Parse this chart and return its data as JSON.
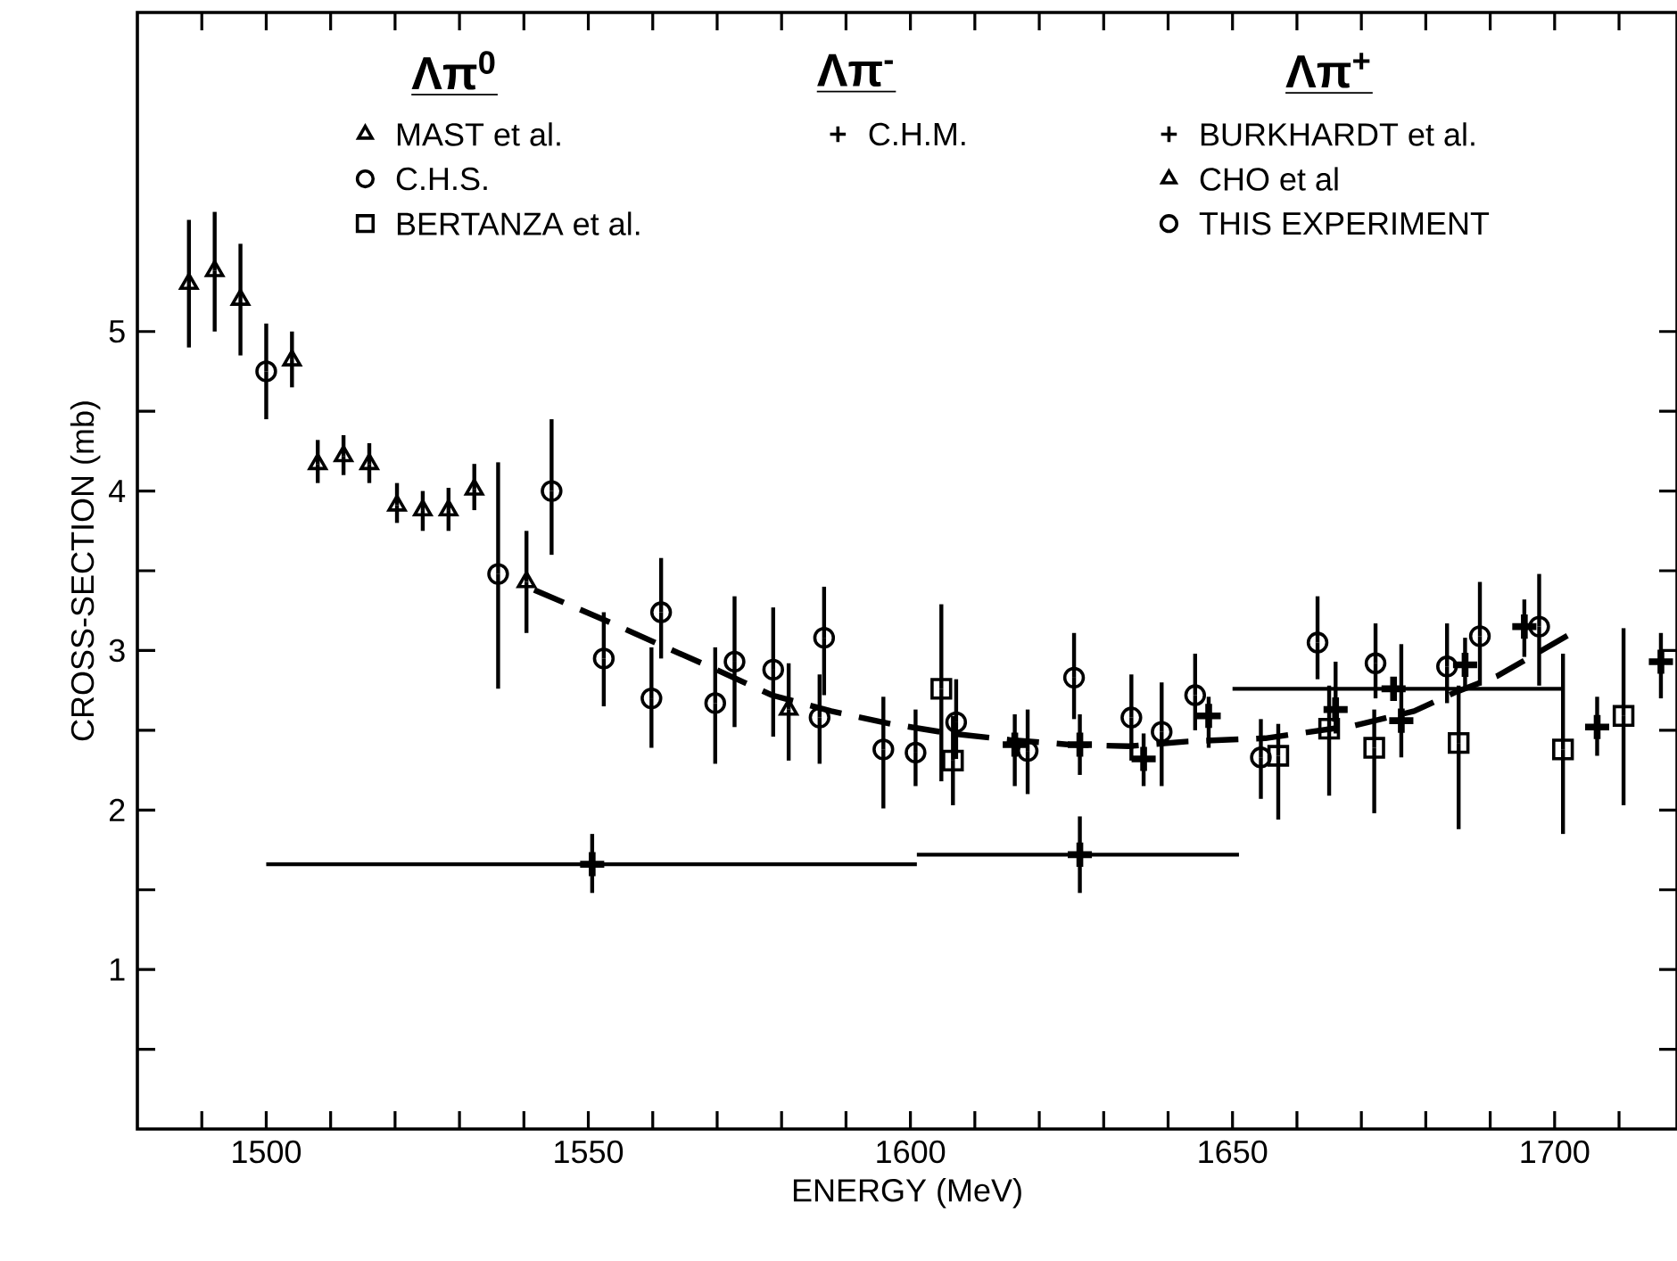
{
  "chart_data": {
    "type": "scatter",
    "xlabel": "ENERGY (MeV)",
    "ylabel": "CROSS-SECTION (mb)",
    "annotations": [
      "Λπ$^{0}$",
      "Λπ$^{-}$",
      "Λπ$^{+}$"
    ],
    "xlim": [
      1480,
      1719
    ],
    "ylim": [
      0,
      7
    ],
    "xticks": [
      {
        "value": 1490,
        "label": null
      },
      1500,
      {
        "value": 1510,
        "label": null
      },
      {
        "value": 1520,
        "label": null
      },
      {
        "value": 1530,
        "label": null
      },
      {
        "value": 1540,
        "label": null
      },
      1550,
      {
        "value": 1560,
        "label": null
      },
      {
        "value": 1570,
        "label": null
      },
      {
        "value": 1580,
        "label": null
      },
      {
        "value": 1590,
        "label": null
      },
      1600,
      {
        "value": 1610,
        "label": null
      },
      {
        "value": 1620,
        "label": null
      },
      {
        "value": 1630,
        "label": null
      },
      {
        "value": 1640,
        "label": null
      },
      1650,
      {
        "value": 1660,
        "label": null
      },
      {
        "value": 1670,
        "label": null
      },
      {
        "value": 1680,
        "label": null
      },
      {
        "value": 1690,
        "label": null
      },
      1700,
      {
        "value": 1710,
        "label": null
      }
    ],
    "yticks": [
      {
        "value": 0.5,
        "label": null
      },
      1,
      {
        "value": 1.5,
        "label": null
      },
      2,
      {
        "value": 2.5,
        "label": null
      },
      3,
      {
        "value": 3.5,
        "label": null
      },
      4,
      {
        "value": 4.5,
        "label": null
      },
      5
    ],
    "grid": false,
    "legend": "top",
    "series": [
      {
        "name": "MAST et al.",
        "color": "#000000",
        "marker": "triangle",
        "x": [
          1488,
          1492,
          1496,
          1504,
          1508,
          1512,
          1516,
          1520.3,
          1524.3,
          1528.3,
          1532.3,
          1540.4
        ],
        "values": [
          5.3,
          5.38,
          5.2,
          4.82,
          4.17,
          4.22,
          4.17,
          3.91,
          3.88,
          3.88,
          4.01,
          3.43
        ],
        "errors": [
          [
            4.9,
            5.7
          ],
          [
            5.0,
            5.75
          ],
          [
            4.85,
            5.55
          ],
          [
            4.65,
            5.0
          ],
          [
            4.05,
            4.32
          ],
          [
            4.1,
            4.35
          ],
          [
            4.05,
            4.3
          ],
          [
            3.8,
            4.05
          ],
          [
            3.75,
            4.0
          ],
          [
            3.75,
            4.02
          ],
          [
            3.88,
            4.17
          ],
          [
            3.11,
            3.75
          ]
        ]
      },
      {
        "name": "C.H.S.",
        "color": "#000000",
        "marker": "circle",
        "x": [
          1500,
          1536,
          1544.3,
          1552.4,
          1561.3,
          1569.7,
          1578.7,
          1586.6,
          1595.8,
          1607.1,
          1618.2,
          1625.4,
          1634.3,
          1639,
          1644.2,
          1654.4,
          1663.2,
          1672.2,
          1683.3,
          1688.4,
          1697.6
        ],
        "values": [
          4.75,
          3.48,
          4.0,
          2.95,
          3.24,
          2.67,
          2.88,
          3.08,
          2.38,
          2.55,
          2.37,
          2.83,
          2.58,
          2.49,
          2.72,
          2.33,
          3.05,
          2.92,
          2.9,
          3.09,
          3.15
        ],
        "errors": [
          [
            4.45,
            5.05
          ],
          [
            2.76,
            4.18
          ],
          [
            3.6,
            4.45
          ],
          [
            2.65,
            3.24
          ],
          [
            2.95,
            3.58
          ],
          [
            2.29,
            3.02
          ],
          [
            2.46,
            3.27
          ],
          [
            2.72,
            3.4
          ],
          [
            2.01,
            2.71
          ],
          [
            2.32,
            2.82
          ],
          [
            2.1,
            2.63
          ],
          [
            2.57,
            3.11
          ],
          [
            2.31,
            2.85
          ],
          [
            2.15,
            2.8
          ],
          [
            2.5,
            2.98
          ],
          [
            2.07,
            2.57
          ],
          [
            2.82,
            3.34
          ],
          [
            2.7,
            3.17
          ],
          [
            2.67,
            3.17
          ],
          [
            2.78,
            3.43
          ],
          [
            2.78,
            3.48
          ]
        ]
      },
      {
        "name": "BERTANZA et al.",
        "color": "#000000",
        "marker": "square",
        "x": [
          1604.8,
          1606.6,
          1657.1,
          1665,
          1672,
          1685.1,
          1701.3,
          1710.7
        ],
        "values": [
          2.76,
          2.31,
          2.34,
          2.51,
          2.39,
          2.42,
          2.38,
          2.59
        ],
        "errors": [
          [
            2.18,
            3.29
          ],
          [
            2.03,
            2.59
          ],
          [
            1.94,
            2.54
          ],
          [
            2.09,
            2.78
          ],
          [
            1.98,
            2.63
          ],
          [
            1.88,
            2.78
          ],
          [
            1.85,
            2.98
          ],
          [
            2.03,
            3.14
          ]
        ]
      },
      {
        "name": "C.H.M.",
        "color": "#000000",
        "marker": "cross",
        "x": [
          1616.2,
          1636.2
        ],
        "values": [
          2.41,
          2.32
        ],
        "errors": [
          [
            2.15,
            2.6
          ],
          [
            2.15,
            2.48
          ]
        ]
      },
      {
        "name": "BURKHARDT et al.",
        "color": "#000000",
        "marker": "cross",
        "x": [
          1626.3,
          1646.3,
          1666,
          1676.2,
          1686.1,
          1695.3,
          1706.6,
          1716.5
        ],
        "values": [
          2.41,
          2.59,
          2.63,
          2.56,
          2.91,
          3.15,
          2.52,
          2.93
        ],
        "errors": [
          [
            2.22,
            2.6
          ],
          [
            2.39,
            2.71
          ],
          [
            2.48,
            2.93
          ],
          [
            2.33,
            3.04
          ],
          [
            2.76,
            3.08
          ],
          [
            2.96,
            3.32
          ],
          [
            2.34,
            2.71
          ],
          [
            2.7,
            3.11
          ]
        ]
      },
      {
        "name": "CHO et al",
        "color": "#000000",
        "marker": "triangle",
        "x": [
          1581.1
        ],
        "values": [
          2.63
        ],
        "errors": [
          [
            2.31,
            2.92
          ]
        ]
      },
      {
        "name": "THIS EXPERIMENT",
        "color": "#000000",
        "marker": "circle",
        "x": [
          1559.8,
          1572.7,
          1585.9,
          1600.8
        ],
        "values": [
          2.7,
          2.93,
          2.58,
          2.36
        ],
        "errors": [
          [
            2.39,
            3.02
          ],
          [
            2.52,
            3.34
          ],
          [
            2.29,
            2.85
          ],
          [
            2.15,
            2.63
          ]
        ]
      },
      {
        "color": "#000000",
        "marker": "cross",
        "x": [
          1550.6,
          1626.3,
          1675
        ],
        "values": [
          1.66,
          1.72,
          2.76
        ],
        "errors": [
          [
            1.48,
            1.85
          ],
          [
            1.48,
            1.96
          ],
          null
        ],
        "xerrors": [
          [
            1500,
            1601
          ],
          [
            1601,
            1651
          ],
          [
            1650,
            1701
          ]
        ]
      },
      {
        "type": "line",
        "color": "#000000",
        "marker": "none",
        "line_style": "dashed",
        "x": [
          1541.6,
          1552.6,
          1560.9,
          1569.3,
          1578.5,
          1587.7,
          1597,
          1606.2,
          1615.4,
          1624.7,
          1633.9,
          1643.1,
          1655.1,
          1669,
          1678.2,
          1684.7,
          1691.1,
          1703.1
        ],
        "values": [
          3.38,
          3.19,
          3.04,
          2.89,
          2.72,
          2.62,
          2.54,
          2.48,
          2.44,
          2.41,
          2.4,
          2.43,
          2.45,
          2.53,
          2.62,
          2.74,
          2.84,
          3.12
        ]
      }
    ]
  }
}
